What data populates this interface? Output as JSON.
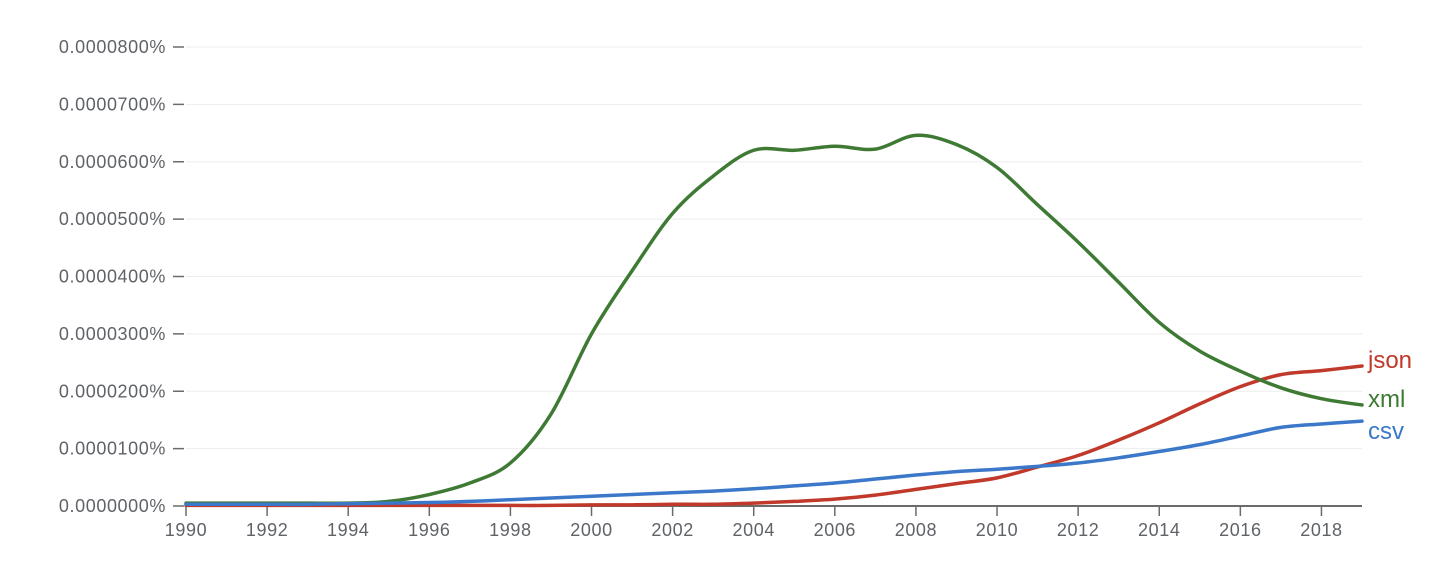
{
  "chart_data": {
    "type": "line",
    "title": "",
    "xlabel": "",
    "ylabel": "",
    "xlim": [
      1990,
      2019
    ],
    "ylim": [
      0,
      8e-05
    ],
    "grid": true,
    "legend": "right-end-labels",
    "y_ticks": [
      0,
      1e-05,
      2e-05,
      3e-05,
      4e-05,
      5e-05,
      6e-05,
      7e-05,
      8e-05
    ],
    "y_tick_labels": [
      "0.0000000%",
      "0.0000100%",
      "0.0000200%",
      "0.0000300%",
      "0.0000400%",
      "0.0000500%",
      "0.0000600%",
      "0.0000700%",
      "0.0000800%"
    ],
    "x_ticks": [
      1990,
      1992,
      1994,
      1996,
      1998,
      2000,
      2002,
      2004,
      2006,
      2008,
      2010,
      2012,
      2014,
      2016,
      2018
    ],
    "x_tick_labels": [
      "1990",
      "1992",
      "1994",
      "1996",
      "1998",
      "2000",
      "2002",
      "2004",
      "2006",
      "2008",
      "2010",
      "2012",
      "2014",
      "2016",
      "2018"
    ],
    "x": [
      1990,
      1991,
      1992,
      1993,
      1994,
      1995,
      1996,
      1997,
      1998,
      1999,
      2000,
      2001,
      2002,
      2003,
      2004,
      2005,
      2006,
      2007,
      2008,
      2009,
      2010,
      2011,
      2012,
      2013,
      2014,
      2015,
      2016,
      2017,
      2018,
      2019
    ],
    "series": [
      {
        "name": "json",
        "color": "#c0392b",
        "values": [
          1e-07,
          1e-07,
          1e-07,
          1e-07,
          1e-07,
          1e-07,
          1e-07,
          1e-07,
          1e-07,
          1e-07,
          2e-07,
          2e-07,
          3e-07,
          3e-07,
          5e-07,
          8e-07,
          1.2e-06,
          1.9e-06,
          2.9e-06,
          3.9e-06,
          4.9e-06,
          6.8e-06,
          8.8e-06,
          1.15e-05,
          1.45e-05,
          1.78e-05,
          2.08e-05,
          2.29e-05,
          2.36e-05,
          2.44e-05
        ]
      },
      {
        "name": "xml",
        "color": "#3f7a35",
        "values": [
          5e-07,
          5e-07,
          5e-07,
          5e-07,
          5e-07,
          8e-07,
          2e-06,
          4e-06,
          7.5e-06,
          1.6e-05,
          3e-05,
          4.1e-05,
          5.1e-05,
          5.75e-05,
          6.2e-05,
          6.2e-05,
          6.27e-05,
          6.22e-05,
          6.46e-05,
          6.3e-05,
          5.9e-05,
          5.25e-05,
          4.6e-05,
          3.9e-05,
          3.2e-05,
          2.7e-05,
          2.35e-05,
          2.06e-05,
          1.87e-05,
          1.76e-05
        ]
      },
      {
        "name": "csv",
        "color": "#3b78c9",
        "values": [
          3e-07,
          3e-07,
          3e-07,
          3e-07,
          4e-07,
          5e-07,
          6e-07,
          8e-07,
          1.1e-06,
          1.4e-06,
          1.7e-06,
          2e-06,
          2.3e-06,
          2.6e-06,
          3e-06,
          3.5e-06,
          4e-06,
          4.7e-06,
          5.4e-06,
          6e-06,
          6.4e-06,
          6.9e-06,
          7.5e-06,
          8.4e-06,
          9.5e-06,
          1.07e-05,
          1.22e-05,
          1.37e-05,
          1.43e-05,
          1.48e-05
        ]
      }
    ]
  }
}
